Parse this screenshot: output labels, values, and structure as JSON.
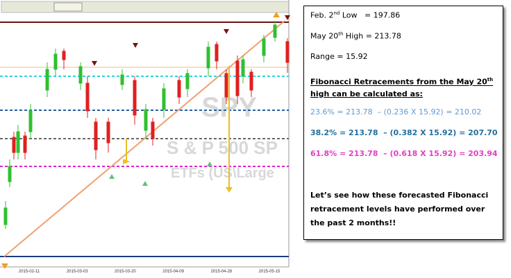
{
  "chart": {
    "watermark": {
      "symbol": "SPY",
      "name": "S & P 500 SP",
      "category": "ETFs (US\\Large"
    },
    "x_labels": [
      "2015-02-11",
      "2015-03-03",
      "2015-03-20",
      "2015-04-09",
      "2015-04-28",
      "2015-05-15"
    ]
  },
  "notes": {
    "low": {
      "pre": "Feb. 2",
      "sup": "nd",
      "post": " Low   = 197.86"
    },
    "high": {
      "pre": "May 20",
      "sup": "th",
      "post": " High = 213.78"
    },
    "range": "Range = 15.92",
    "heading": {
      "pre": "Fibonacci Retracements from the May 20",
      "sup": "th",
      "post": " high can be calculated as:"
    },
    "levels": [
      "23.6% = 213.78  – (0.236 X 15.92) = 210.02",
      "38.2% = 213.78  – (0.382 X 15.92) = 207.70",
      "61.8% = 213.78  – (0.618 X 15.92) = 203.94"
    ],
    "closing": "Let’s see how these forecasted Fibonacci retracement levels have performed over the past 2  months!!"
  }
}
